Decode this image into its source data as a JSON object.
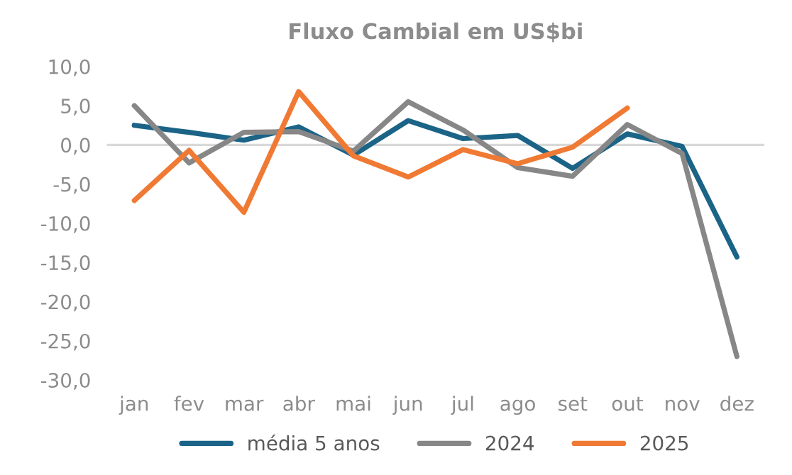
{
  "chart_data": {
    "type": "line",
    "title": "Fluxo Cambial em US$bi",
    "categories": [
      "jan",
      "fev",
      "mar",
      "abr",
      "mai",
      "jun",
      "jul",
      "ago",
      "set",
      "out",
      "nov",
      "dez"
    ],
    "series": [
      {
        "name": "média 5 anos",
        "color": "#1b6487",
        "values": [
          2.5,
          1.6,
          0.6,
          2.3,
          -1.3,
          3.1,
          0.8,
          1.2,
          -3.0,
          1.4,
          -0.2,
          -14.3
        ]
      },
      {
        "name": "2024",
        "color": "#878787",
        "values": [
          5.0,
          -2.3,
          1.6,
          1.7,
          -0.8,
          5.5,
          1.9,
          -2.9,
          -4.0,
          2.6,
          -1.1,
          -27.0
        ]
      },
      {
        "name": "2025",
        "color": "#f07a34",
        "values": [
          -7.1,
          -0.7,
          -8.6,
          6.8,
          -1.4,
          -4.1,
          -0.6,
          -2.4,
          -0.3,
          4.7,
          null,
          null
        ]
      }
    ],
    "ylim": [
      -30,
      10
    ],
    "yticks": [
      {
        "value": -30,
        "label": "-30,0"
      },
      {
        "value": -25,
        "label": "-25,0"
      },
      {
        "value": -20,
        "label": "-20,0"
      },
      {
        "value": -15,
        "label": "-15,0"
      },
      {
        "value": -10,
        "label": "-10,0"
      },
      {
        "value": -5,
        "label": "-5,0"
      },
      {
        "value": 0,
        "label": "0,0"
      },
      {
        "value": 5,
        "label": "5,0"
      },
      {
        "value": 10,
        "label": "10,0"
      }
    ],
    "ref_lines": [
      {
        "axis": "y",
        "value": 0,
        "color": "#d9d9d9"
      }
    ],
    "grid": false,
    "legend": "bottom",
    "marker": "none",
    "line_style": "solid"
  }
}
